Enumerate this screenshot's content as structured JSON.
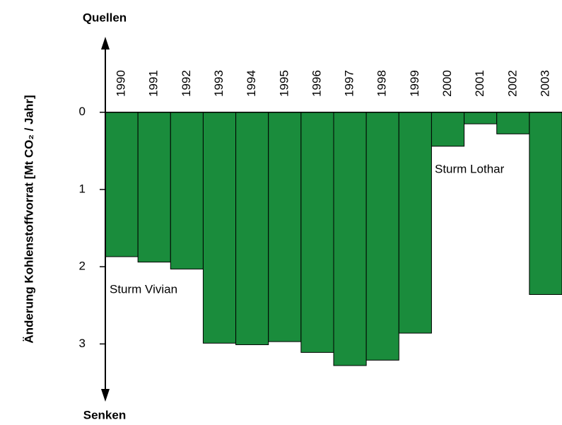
{
  "chart_data": {
    "type": "bar",
    "top_label": "Quellen",
    "bottom_label": "Senken",
    "y_label": "Änderung Kohlenstoffvorrat [Mt CO₂ / Jahr]",
    "annotations": [
      "Sturm Vivian",
      "Sturm Lothar"
    ],
    "categories": [
      "1990",
      "1991",
      "1992",
      "1993",
      "1994",
      "1995",
      "1996",
      "1997",
      "1998",
      "1999",
      "2000",
      "2001",
      "2002",
      "2003"
    ],
    "values": [
      1.87,
      1.94,
      2.03,
      2.99,
      3.01,
      2.97,
      3.11,
      3.28,
      3.21,
      2.86,
      0.44,
      0.15,
      0.28,
      2.36
    ],
    "color": "#1a8c3c",
    "ylim": [
      -0.95,
      3.72
    ],
    "inverted": true,
    "yticks": [
      0,
      1,
      2,
      3
    ]
  }
}
